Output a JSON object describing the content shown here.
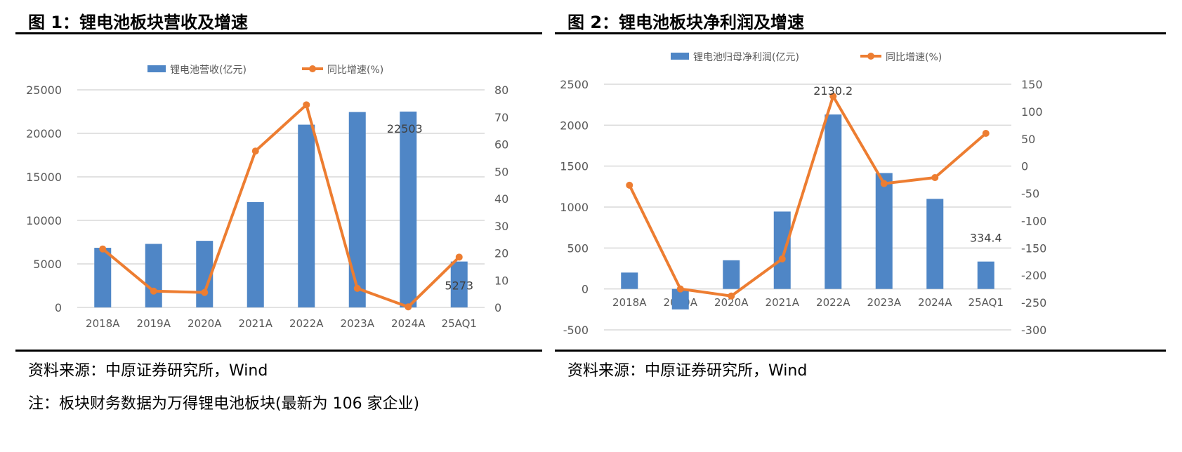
{
  "colors": {
    "bar": "#4f86c6",
    "line": "#ed7d31",
    "grid": "#d9d9d9"
  },
  "fig1": {
    "title": "图 1：锂电池板块营收及增速",
    "source": "资料来源：中原证券研究所，Wind",
    "note": "注：板块财务数据为万得锂电池板块(最新为 106 家企业)"
  },
  "fig2": {
    "title": "图 2：锂电池板块净利润及增速",
    "source": "资料来源：中原证券研究所，Wind"
  },
  "chart_data": [
    {
      "type": "bar+line",
      "categories": [
        "2018A",
        "2019A",
        "2020A",
        "2021A",
        "2022A",
        "2023A",
        "2024A",
        "25AQ1"
      ],
      "series": [
        {
          "name": "锂电池营收(亿元)",
          "type": "bar",
          "axis": "left",
          "values": [
            6850,
            7300,
            7650,
            12100,
            21000,
            22450,
            22503,
            5273
          ]
        },
        {
          "name": "同比增速(%)",
          "type": "line",
          "axis": "right",
          "values": [
            21.5,
            6,
            5.5,
            57.5,
            74.5,
            7,
            0.2,
            18.5
          ]
        }
      ],
      "data_labels": [
        {
          "index": 6,
          "text": "22503"
        },
        {
          "index": 7,
          "text": "5273"
        }
      ],
      "left_ticks": [
        "0",
        "5000",
        "10000",
        "15000",
        "20000",
        "25000"
      ],
      "ylim": [
        0,
        25000
      ],
      "right_ticks": [
        "0",
        "10",
        "20",
        "30",
        "40",
        "50",
        "60",
        "70",
        "80"
      ],
      "y2lim": [
        0,
        80
      ],
      "grid": true,
      "legend": "top"
    },
    {
      "type": "bar+line",
      "categories": [
        "2018A",
        "2019A",
        "2020A",
        "2021A",
        "2022A",
        "2023A",
        "2024A",
        "25AQ1"
      ],
      "series": [
        {
          "name": "锂电池归母净利润(亿元)",
          "type": "bar",
          "axis": "left",
          "values": [
            200,
            -250,
            350,
            945,
            2130.2,
            1415,
            1100,
            334.4
          ]
        },
        {
          "name": "同比增速(%)",
          "type": "line",
          "axis": "right",
          "values": [
            -35,
            -225,
            -238,
            -170,
            128,
            -32,
            -21,
            60
          ]
        }
      ],
      "data_labels": [
        {
          "index": 4,
          "text": "2130.2"
        },
        {
          "index": 7,
          "text": "334.4"
        }
      ],
      "left_ticks": [
        "-500",
        "0",
        "500",
        "1000",
        "1500",
        "2000",
        "2500"
      ],
      "ylim": [
        -500,
        2500
      ],
      "right_ticks": [
        "-300",
        "-250",
        "-200",
        "-150",
        "-100",
        "-50",
        "0",
        "50",
        "100",
        "150"
      ],
      "y2lim": [
        -300,
        150
      ],
      "grid": true,
      "legend": "top"
    }
  ]
}
